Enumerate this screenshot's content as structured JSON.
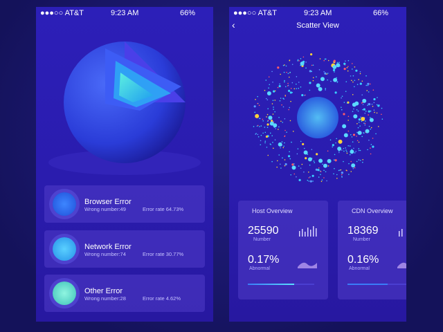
{
  "left_screen": {
    "status_bar": {
      "carrier": "AT&T",
      "time": "9:23 AM",
      "battery": "66%"
    },
    "cards": [
      {
        "title": "Browser Error",
        "wrong_number": "Wrong number:49",
        "error_rate": "Error rate 64.73%"
      },
      {
        "title": "Network Error",
        "wrong_number": "Wrong number:74",
        "error_rate": "Error rate 30.77%"
      },
      {
        "title": "Other Error",
        "wrong_number": "Wrong number:28",
        "error_rate": "Error rate 4.62%"
      }
    ]
  },
  "right_screen": {
    "status_bar": {
      "carrier": "AT&T",
      "time": "9:23 AM",
      "battery": "66%"
    },
    "title": "Scatter View",
    "panels": [
      {
        "title": "Host Overview",
        "number": "25590",
        "number_label": "Number",
        "abnormal": "0.17%",
        "abnormal_label": "Abnormal"
      },
      {
        "title": "CDN Overview",
        "number": "18369",
        "number_label": "Number",
        "abnormal": "0.16%",
        "abnormal_label": "Abnormal"
      }
    ]
  }
}
